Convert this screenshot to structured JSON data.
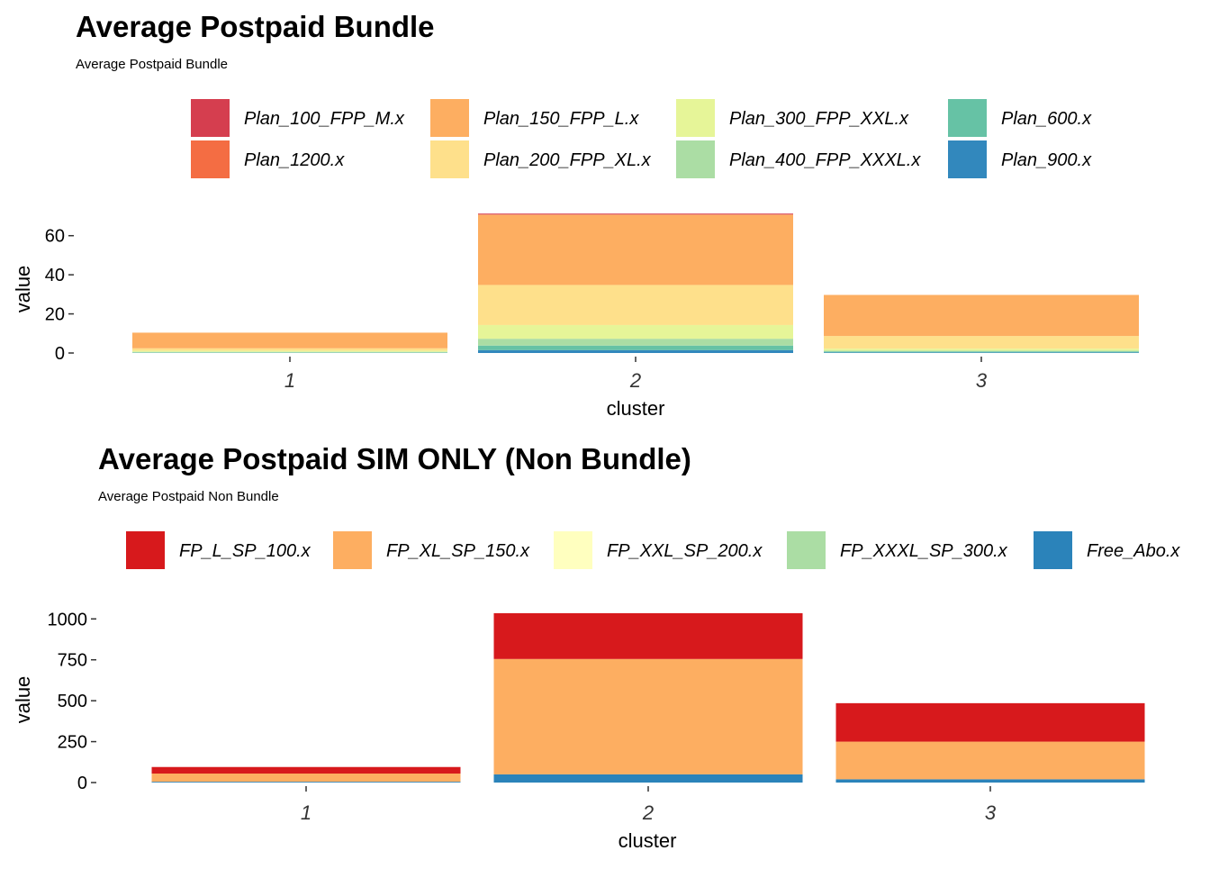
{
  "chart_data": [
    {
      "type": "bar",
      "stacked": true,
      "title": "Average Postpaid Bundle",
      "subtitle": "Average Postpaid Bundle",
      "xlabel": "cluster",
      "ylabel": "value",
      "categories": [
        "1",
        "2",
        "3"
      ],
      "yticks": [
        0,
        20,
        40,
        60
      ],
      "ylim": [
        0,
        70
      ],
      "legend_position": "top",
      "grid": false,
      "series": [
        {
          "name": "Plan_100_FPP_M.x",
          "color": "#D53E4F",
          "values": [
            0,
            0.5,
            0
          ]
        },
        {
          "name": "Plan_1200.x",
          "color": "#F46D43",
          "values": [
            0,
            0,
            0
          ]
        },
        {
          "name": "Plan_150_FPP_L.x",
          "color": "#FDAE61",
          "values": [
            8,
            36,
            21
          ]
        },
        {
          "name": "Plan_200_FPP_XL.x",
          "color": "#FEE08B",
          "values": [
            1.2,
            20.5,
            6.5
          ]
        },
        {
          "name": "Plan_300_FPP_XXL.x",
          "color": "#E6F598",
          "values": [
            0.6,
            7,
            1
          ]
        },
        {
          "name": "Plan_400_FPP_XXXL.x",
          "color": "#ABDDA4",
          "values": [
            0.3,
            3.5,
            0.4
          ]
        },
        {
          "name": "Plan_600.x",
          "color": "#66C2A5",
          "values": [
            0.2,
            2.3,
            0.5
          ]
        },
        {
          "name": "Plan_900.x",
          "color": "#3288BD",
          "values": [
            0.1,
            1.5,
            0.3
          ]
        }
      ]
    },
    {
      "type": "bar",
      "stacked": true,
      "title": "Average Postpaid SIM ONLY (Non Bundle)",
      "subtitle": "Average Postpaid Non Bundle",
      "xlabel": "cluster",
      "ylabel": "value",
      "categories": [
        "1",
        "2",
        "3"
      ],
      "yticks": [
        0,
        250,
        500,
        750,
        1000
      ],
      "ylim": [
        0,
        1040
      ],
      "legend_position": "top",
      "grid": false,
      "series": [
        {
          "name": "FP_L_SP_100.x",
          "color": "#D7191C",
          "values": [
            40,
            280,
            235
          ]
        },
        {
          "name": "FP_XL_SP_150.x",
          "color": "#FDAE61",
          "values": [
            50,
            705,
            230
          ]
        },
        {
          "name": "FP_XXL_SP_200.x",
          "color": "#FFFFBF",
          "values": [
            0,
            0,
            0
          ]
        },
        {
          "name": "FP_XXXL_SP_300.x",
          "color": "#ABDDA4",
          "values": [
            0,
            0,
            0
          ]
        },
        {
          "name": "Free_Abo.x",
          "color": "#2B83BA",
          "values": [
            5,
            50,
            20
          ]
        }
      ]
    }
  ]
}
